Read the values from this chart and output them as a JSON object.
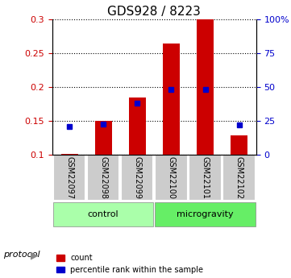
{
  "title": "GDS928 / 8223",
  "samples": [
    "GSM22097",
    "GSM22098",
    "GSM22099",
    "GSM22100",
    "GSM22101",
    "GSM22102"
  ],
  "groups": [
    "control",
    "control",
    "control",
    "microgravity",
    "microgravity",
    "microgravity"
  ],
  "bar_values": [
    0.101,
    0.15,
    0.185,
    0.264,
    0.3,
    0.128
  ],
  "bar_base": 0.1,
  "percentile_values": [
    20.5,
    22.5,
    38.0,
    48.5,
    48.5,
    22.0
  ],
  "left_ylim": [
    0.1,
    0.3
  ],
  "right_ylim": [
    0,
    100
  ],
  "left_yticks": [
    0.1,
    0.15,
    0.2,
    0.25,
    0.3
  ],
  "right_yticks": [
    0,
    25,
    50,
    75,
    100
  ],
  "bar_color": "#cc0000",
  "percentile_color": "#0000cc",
  "control_color": "#aaffaa",
  "microgravity_color": "#66ee66",
  "group_label_color": "#000000",
  "left_tick_color": "#cc0000",
  "right_tick_color": "#0000cc",
  "grid_color": "#000000",
  "bar_width": 0.5,
  "legend_items": [
    "count",
    "percentile rank within the sample"
  ]
}
